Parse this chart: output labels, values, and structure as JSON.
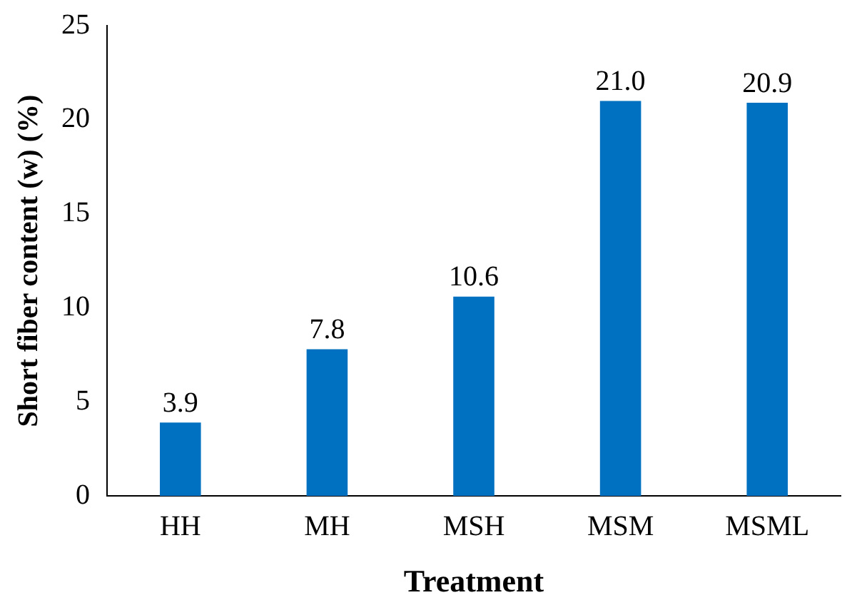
{
  "chart_data": {
    "type": "bar",
    "xlabel": "Treatment",
    "ylabel": "Short fiber content (w) (%)",
    "categories": [
      "HH",
      "MH",
      "MSH",
      "MSM",
      "MSML"
    ],
    "values": [
      3.9,
      7.8,
      10.6,
      21.0,
      20.9
    ],
    "value_labels": [
      "3.9",
      "7.8",
      "10.6",
      "21.0",
      "20.9"
    ],
    "color": "#0070c0",
    "ylim": [
      0,
      25
    ],
    "yticks": [
      0,
      5,
      10,
      15,
      20,
      25
    ],
    "grid": false,
    "legend": false
  }
}
